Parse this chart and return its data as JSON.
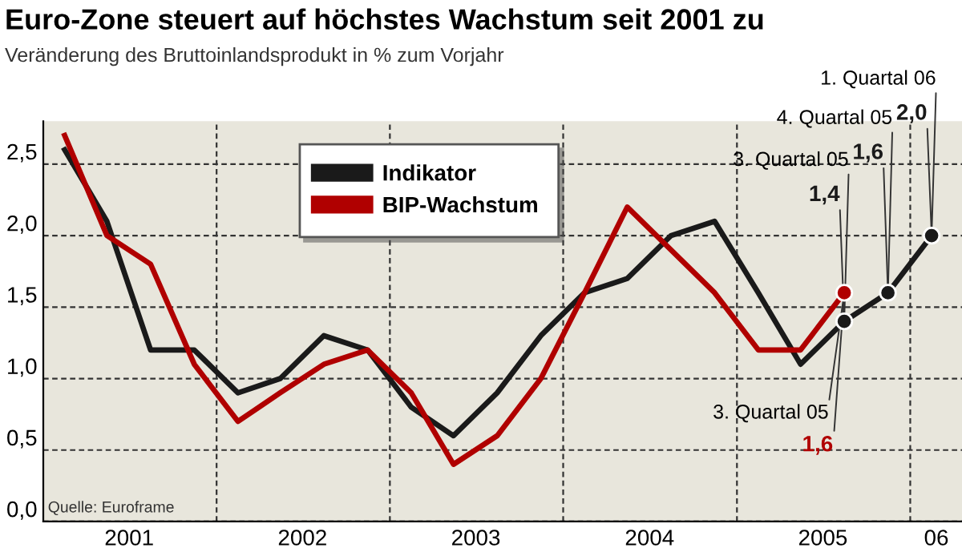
{
  "chart_data": {
    "type": "line",
    "title": "Euro-Zone steuert auf höchstes Wachstum seit 2001 zu",
    "subtitle": "Veränderung des Bruttoinlandsprodukt in % zum Vorjahr",
    "x": [
      "2001-02-15",
      "2001-05-15",
      "2001-08-15",
      "2001-11-15",
      "2002-02-15",
      "2002-05-15",
      "2002-08-15",
      "2002-11-15",
      "2003-02-15",
      "2003-05-15",
      "2003-08-15",
      "2003-11-15",
      "2004-02-15",
      "2004-05-15",
      "2004-08-15",
      "2004-11-15",
      "2005-02-15",
      "2005-05-15",
      "2005-08-15",
      "2005-11-15",
      "2006-02-15"
    ],
    "series": [
      {
        "name": "Indikator",
        "color": "#1a1a1a",
        "values": [
          2.6,
          2.1,
          1.2,
          1.2,
          0.9,
          1.0,
          1.3,
          1.2,
          0.8,
          0.6,
          0.9,
          1.3,
          1.6,
          1.7,
          2.0,
          2.1,
          1.6,
          1.1,
          1.4,
          1.6,
          2.0
        ]
      },
      {
        "name": "BIP-Wachstum",
        "color": "#b00000",
        "values": [
          2.7,
          2.0,
          1.8,
          1.1,
          0.7,
          0.9,
          1.1,
          1.2,
          0.9,
          0.4,
          0.6,
          1.0,
          1.6,
          2.2,
          1.9,
          1.6,
          1.2,
          1.2,
          1.6,
          null,
          null
        ]
      }
    ],
    "xlim": [
      "2001-01-01",
      "2006-04-20"
    ],
    "xticks": [
      {
        "value": "2001-07-01",
        "label": "2001"
      },
      {
        "value": "2002-01-01",
        "label": null
      },
      {
        "value": "2002-07-01",
        "label": "2002"
      },
      {
        "value": "2003-01-01",
        "label": null
      },
      {
        "value": "2003-07-01",
        "label": "2003"
      },
      {
        "value": "2004-01-01",
        "label": null
      },
      {
        "value": "2004-07-01",
        "label": "2004"
      },
      {
        "value": "2005-01-01",
        "label": null
      },
      {
        "value": "2005-07-01",
        "label": "2005"
      },
      {
        "value": "2006-01-01",
        "label": null
      },
      {
        "value": "2006-02-25",
        "label": "06"
      }
    ],
    "ylim": [
      0,
      2.8
    ],
    "yticks": [
      {
        "value": 0,
        "label": "0,0"
      },
      {
        "value": 0.5,
        "label": "0,5"
      },
      {
        "value": 1.0,
        "label": "1,0"
      },
      {
        "value": 1.5,
        "label": "1,5"
      },
      {
        "value": 2.0,
        "label": "2,0"
      },
      {
        "value": 2.5,
        "label": "2,5"
      }
    ],
    "grid": true,
    "legend": "top",
    "annotations": [
      {
        "text": "1. Quartal 06",
        "x": "2006-02-15",
        "y": 2.0
      },
      {
        "text": "2,0",
        "x": "2006-02-15",
        "y": 2.0
      },
      {
        "text": "4. Quartal 05",
        "x": "2005-11-15",
        "y": 1.6
      },
      {
        "text": "1,6",
        "x": "2005-11-15",
        "y": 1.6
      },
      {
        "text": "3. Quartal 05",
        "x": "2005-08-15",
        "y": 1.4
      },
      {
        "text": "1,4",
        "x": "2005-08-15",
        "y": 1.4
      },
      {
        "text": "3. Quartal 05",
        "x": "2005-08-15",
        "y": 1.6
      },
      {
        "text": "1,6",
        "x": "2005-08-15",
        "y": 1.6
      },
      "Quelle: Euroframe"
    ]
  }
}
